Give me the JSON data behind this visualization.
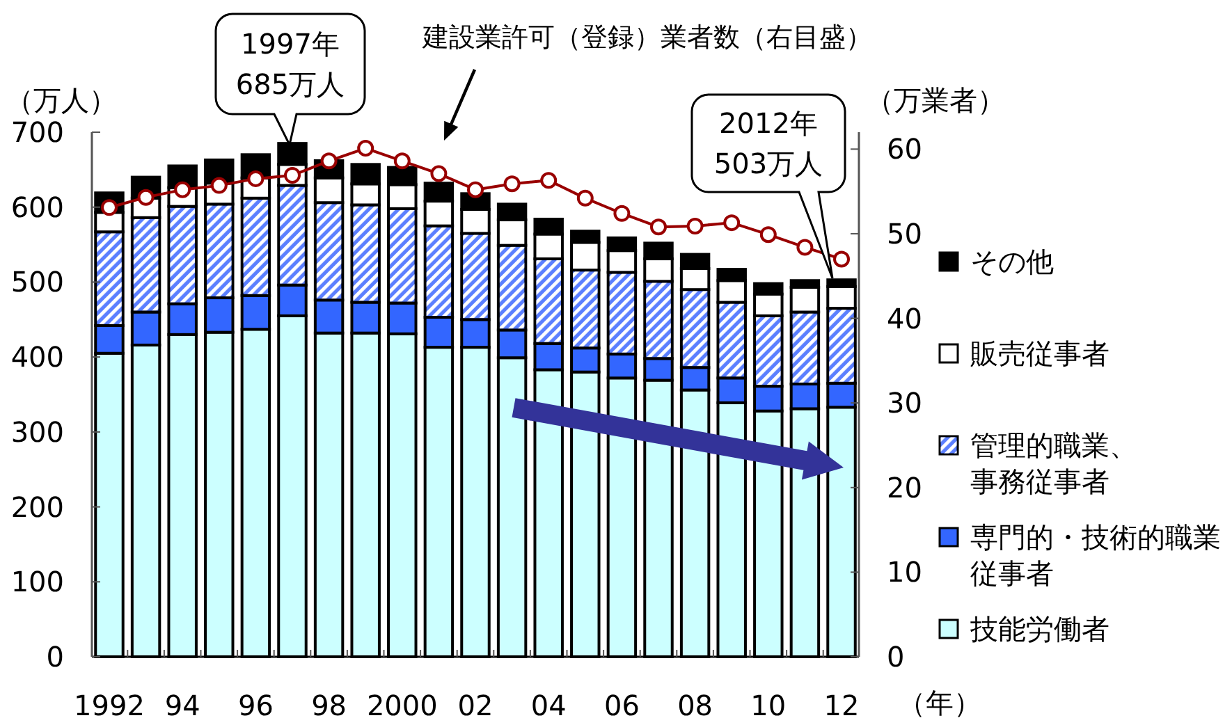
{
  "chart_data": {
    "type": "bar",
    "stacked": true,
    "categories": [
      "1992",
      null,
      "94",
      null,
      "96",
      null,
      "98",
      null,
      "2000",
      null,
      "02",
      null,
      "04",
      null,
      "06",
      null,
      "08",
      null,
      "10",
      null,
      "12"
    ],
    "xlabel": "（年）",
    "ylabel": "（万人）",
    "y2label": "（万業者）",
    "ylim": [
      0,
      700
    ],
    "yticks": [
      0,
      100,
      200,
      300,
      400,
      500,
      600,
      700
    ],
    "y2lim": [
      0,
      62
    ],
    "y2ticks": [
      0,
      10,
      20,
      30,
      40,
      50,
      60
    ],
    "legend": "right",
    "series": [
      {
        "name": "技能労働者",
        "color": "#ccffff",
        "values": [
          405,
          416,
          430,
          433,
          437,
          455,
          432,
          432,
          431,
          413,
          413,
          399,
          383,
          380,
          372,
          369,
          356,
          339,
          328,
          331,
          333
        ]
      },
      {
        "name": "専門的・技術的職業従事者",
        "color": "#3366ff",
        "values": [
          37,
          44,
          41,
          46,
          45,
          41,
          44,
          41,
          41,
          40,
          37,
          37,
          35,
          32,
          32,
          29,
          30,
          33,
          33,
          33,
          32
        ]
      },
      {
        "name": "管理的職業、事務従事者",
        "color": "#5b7fff",
        "values": [
          125,
          126,
          130,
          125,
          130,
          133,
          130,
          130,
          126,
          122,
          115,
          113,
          113,
          104,
          109,
          103,
          104,
          101,
          94,
          96,
          100
        ]
      },
      {
        "name": "販売従事者",
        "color": "#ffffff",
        "values": [
          26,
          26,
          25,
          28,
          27,
          28,
          33,
          28,
          32,
          33,
          32,
          34,
          33,
          37,
          29,
          30,
          28,
          29,
          29,
          33,
          29
        ]
      },
      {
        "name": "その他",
        "color": "#000000",
        "values": [
          26,
          28,
          29,
          31,
          31,
          28,
          23,
          26,
          23,
          24,
          21,
          21,
          20,
          15,
          17,
          21,
          19,
          15,
          14,
          9,
          9
        ]
      },
      {
        "type": "line",
        "axis": "y2",
        "color": "#990000",
        "marker": "circle",
        "values": [
          53.1,
          54.3,
          55.2,
          55.7,
          56.5,
          56.9,
          58.6,
          60.1,
          58.6,
          57.1,
          55.2,
          55.9,
          56.3,
          54.2,
          52.4,
          50.8,
          50.9,
          51.3,
          49.9,
          48.4,
          47.0
        ]
      }
    ],
    "annotations": [
      {
        "text": "1997年 685万人",
        "y": 685
      },
      "建設業許可（登録）業者数（右目盛）",
      "2012年 503万人"
    ]
  }
}
